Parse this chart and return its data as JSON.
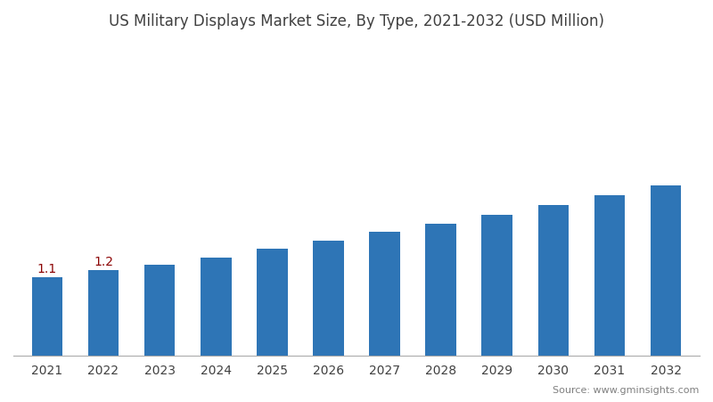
{
  "title": "US Military Displays Market Size, By Type, 2021-2032 (USD Million)",
  "years": [
    2021,
    2022,
    2023,
    2024,
    2025,
    2026,
    2027,
    2028,
    2029,
    2030,
    2031,
    2032
  ],
  "values": [
    1.1,
    1.2,
    1.28,
    1.38,
    1.5,
    1.62,
    1.74,
    1.86,
    1.98,
    2.12,
    2.26,
    2.4
  ],
  "bar_color": "#2e75b6",
  "background_color": "#ffffff",
  "title_color": "#404040",
  "title_fontsize": 12,
  "tick_fontsize": 10,
  "annotation_labels": {
    "2021": "1.1",
    "2022": "1.2"
  },
  "annotation_color": "#8B0000",
  "annotation_fontsize": 10,
  "source_text": "Source: www.gminsights.com",
  "source_color": "#808080",
  "source_fontsize": 8,
  "ylim": [
    0,
    4.4
  ],
  "bar_width": 0.55
}
